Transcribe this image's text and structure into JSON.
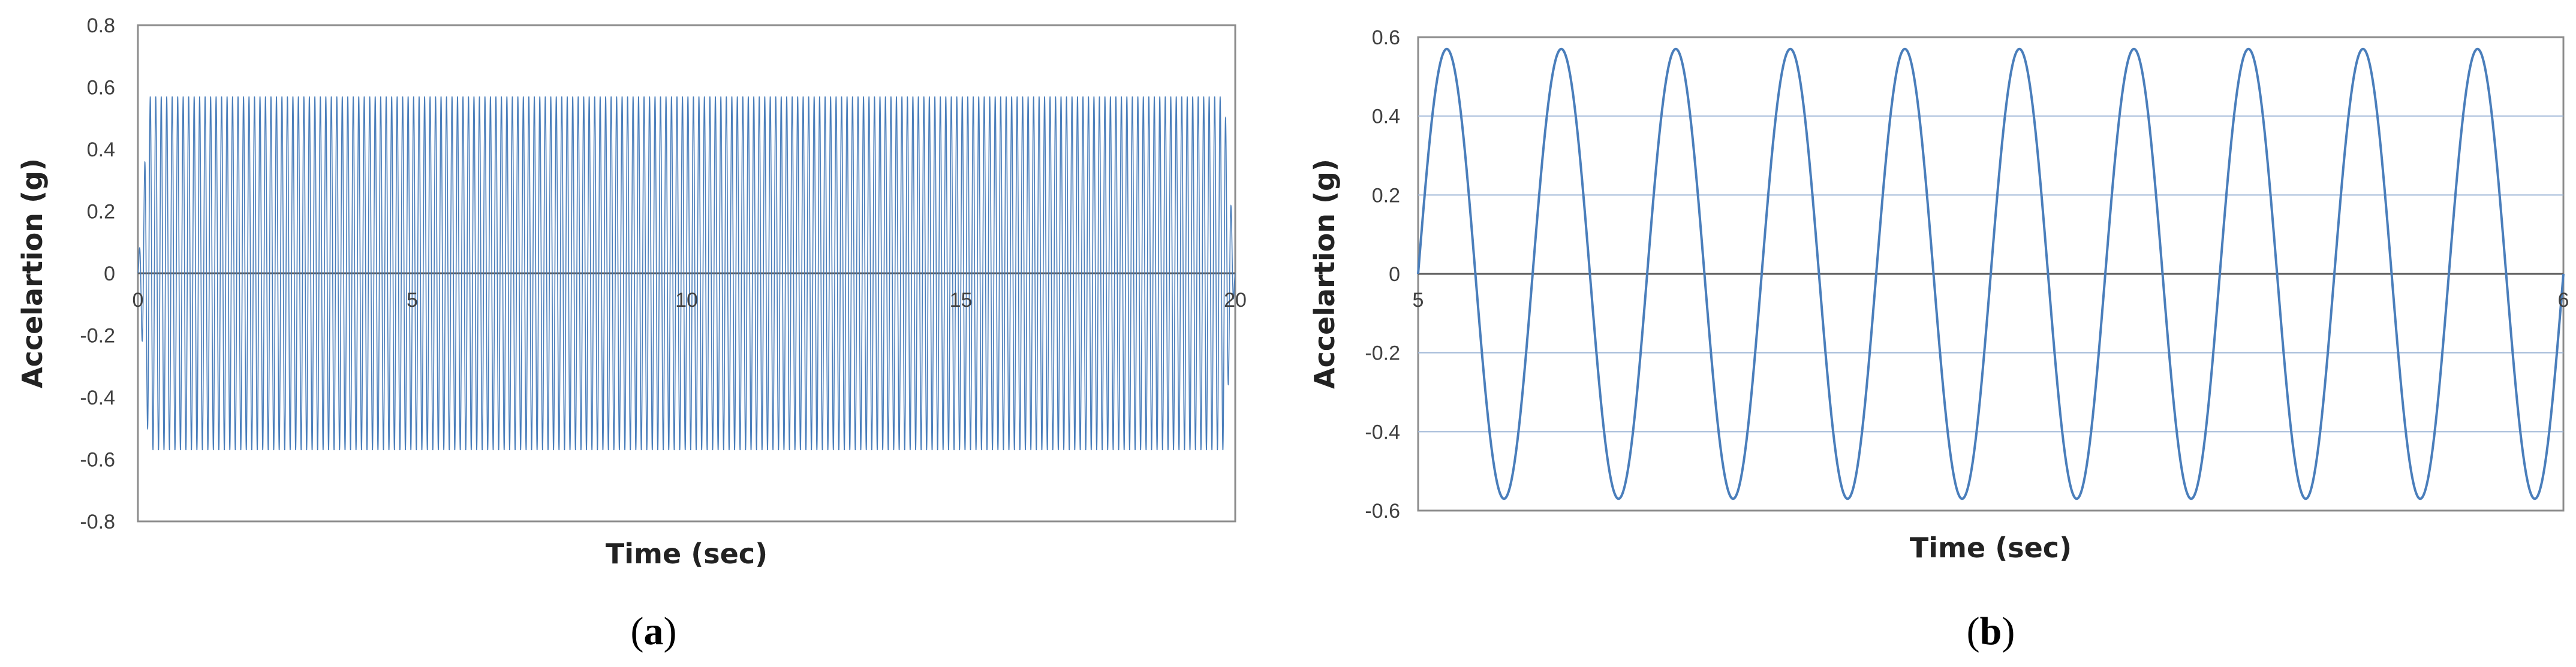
{
  "chart_data": [
    {
      "type": "line",
      "panel_label": "a",
      "xlabel": "Time (sec)",
      "ylabel": "Accelartion (g)",
      "xlim": [
        0,
        20
      ],
      "ylim": [
        -0.8,
        0.8
      ],
      "xticks": [
        "0",
        "5",
        "10",
        "15",
        "20"
      ],
      "yticks": [
        "0.8",
        "0.6",
        "0.4",
        "0.2",
        "0",
        "-0.2",
        "-0.4",
        "-0.6",
        "-0.8"
      ],
      "grid": false,
      "series": [
        {
          "color": "#4a7ebb",
          "function": "sine",
          "amplitude": 0.57,
          "frequency_hz": 10,
          "t_start": 0.2,
          "t_end": 19.8,
          "ramp_start": [
            0,
            0.57
          ],
          "ramp_end": [
            0.57,
            0
          ]
        }
      ]
    },
    {
      "type": "line",
      "panel_label": "b",
      "xlabel": "Time (sec)",
      "ylabel": "Accelartion (g)",
      "xlim": [
        5,
        6
      ],
      "ylim": [
        -0.6,
        0.6
      ],
      "xticks": [
        "5",
        "6"
      ],
      "yticks": [
        "0.6",
        "0.4",
        "0.2",
        "0",
        "-0.2",
        "-0.4",
        "-0.6"
      ],
      "grid": true,
      "series": [
        {
          "color": "#4a7ebb",
          "function": "sine",
          "amplitude": 0.57,
          "frequency_hz": 10
        }
      ]
    }
  ]
}
